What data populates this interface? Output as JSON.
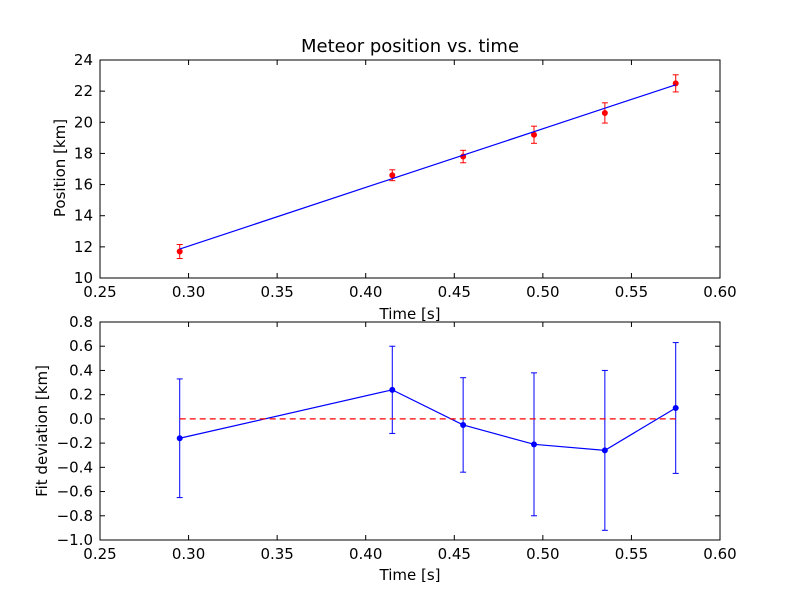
{
  "chart_data": [
    {
      "type": "scatter",
      "title": "Meteor position vs. time",
      "xlabel": "Time [s]",
      "ylabel": "Position [km]",
      "xlim": [
        0.25,
        0.6
      ],
      "ylim": [
        10,
        24
      ],
      "xticks": [
        "0.25",
        "0.30",
        "0.35",
        "0.40",
        "0.45",
        "0.50",
        "0.55",
        "0.60"
      ],
      "yticks": [
        "10",
        "12",
        "14",
        "16",
        "18",
        "20",
        "22",
        "24"
      ],
      "grid": false,
      "series": [
        {
          "kind": "errorbar-points",
          "color": "#ff0000",
          "x": [
            0.295,
            0.415,
            0.455,
            0.495,
            0.535,
            0.575
          ],
          "y": [
            11.7,
            16.6,
            17.8,
            19.2,
            20.6,
            22.5
          ],
          "yerr": [
            0.45,
            0.35,
            0.4,
            0.55,
            0.65,
            0.55
          ]
        },
        {
          "kind": "fit-line",
          "color": "#0000ff",
          "x": [
            0.295,
            0.575
          ],
          "y": [
            11.86,
            22.41
          ]
        }
      ]
    },
    {
      "type": "line",
      "title": "",
      "xlabel": "Time [s]",
      "ylabel": "Fit deviation [km]",
      "xlim": [
        0.25,
        0.6
      ],
      "ylim": [
        -1.0,
        0.8
      ],
      "xticks": [
        "0.25",
        "0.30",
        "0.35",
        "0.40",
        "0.45",
        "0.50",
        "0.55",
        "0.60"
      ],
      "yticks": [
        "0.8",
        "0.6",
        "0.4",
        "0.2",
        "0.0",
        "−0.2",
        "−0.4",
        "−0.6",
        "−0.8",
        "−1.0"
      ],
      "grid": false,
      "series": [
        {
          "kind": "errorbar-line",
          "color": "#0000ff",
          "x": [
            0.295,
            0.415,
            0.455,
            0.495,
            0.535,
            0.575
          ],
          "y": [
            -0.16,
            0.24,
            -0.05,
            -0.21,
            -0.26,
            0.09
          ],
          "yerr": [
            0.49,
            0.36,
            0.39,
            0.59,
            0.66,
            0.54
          ]
        },
        {
          "kind": "zero-reference",
          "color": "#ff0000",
          "style": "dashed",
          "x": [
            0.295,
            0.575
          ],
          "y": [
            0.0,
            0.0
          ]
        }
      ]
    }
  ]
}
